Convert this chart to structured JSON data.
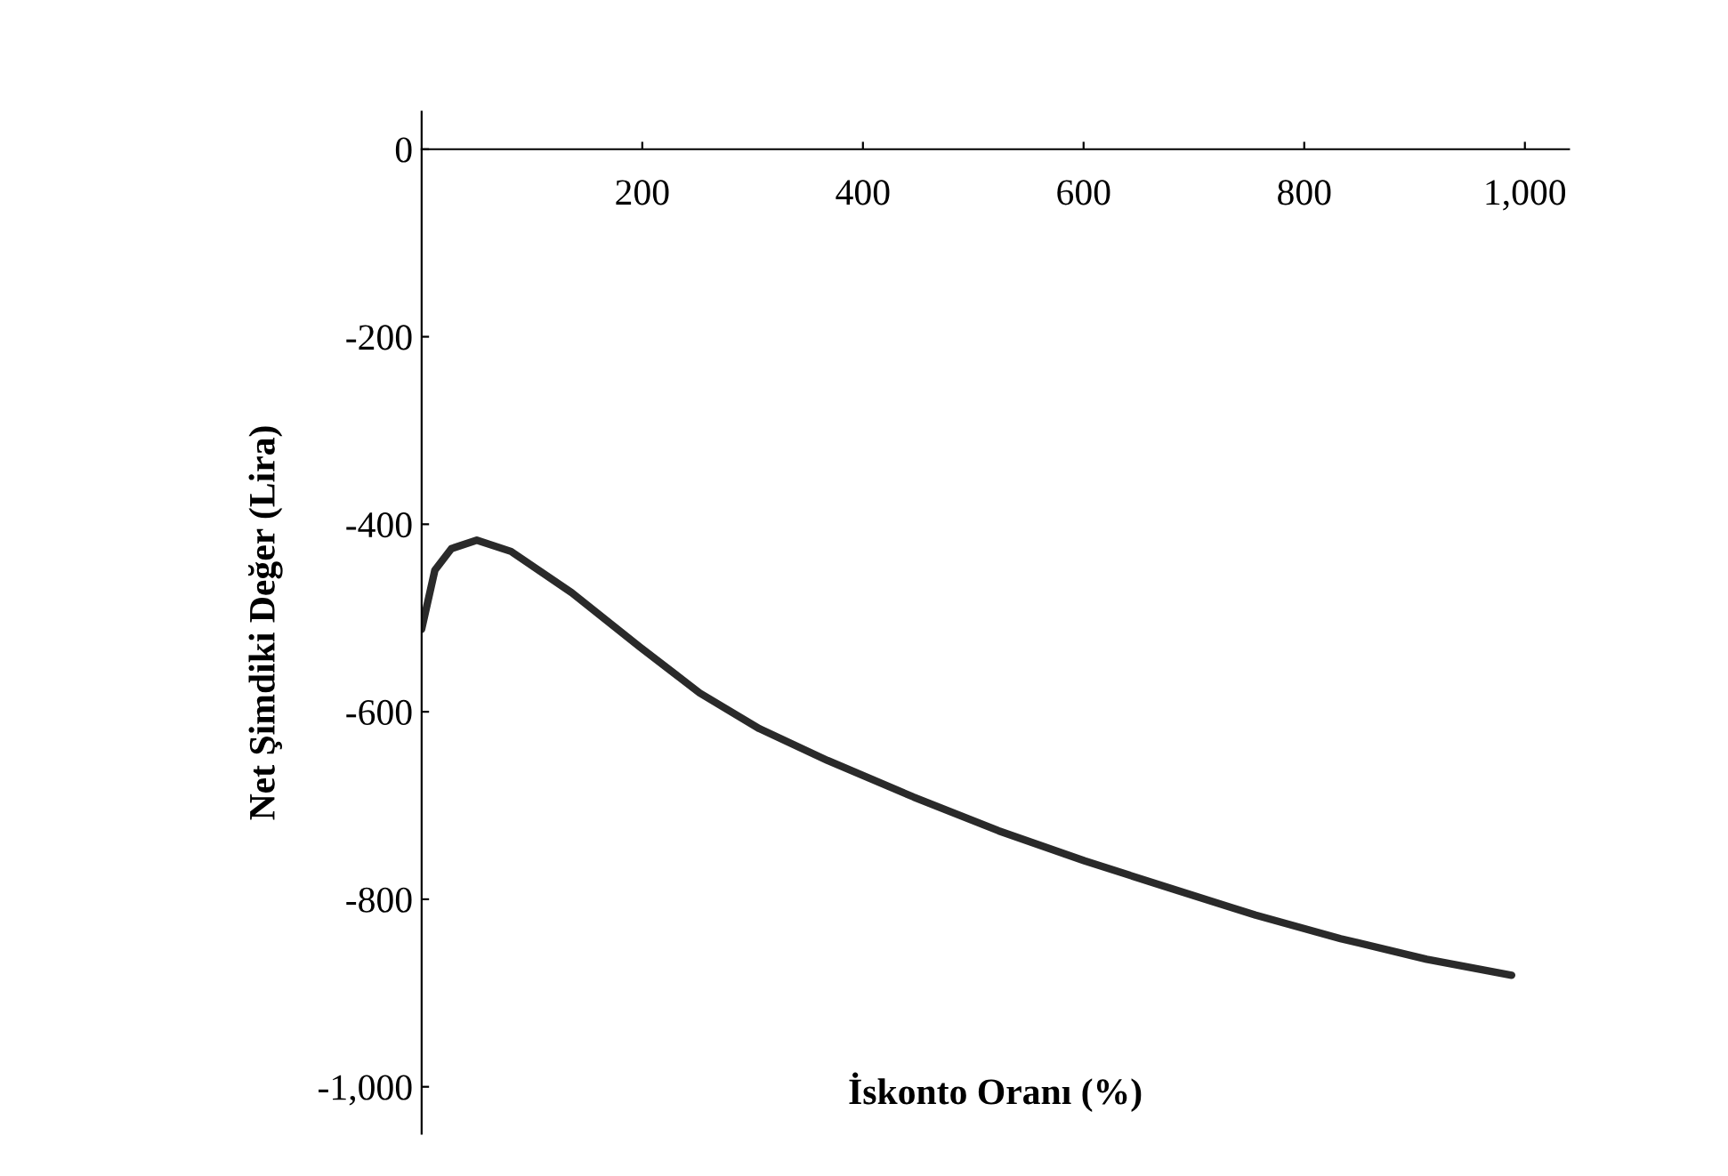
{
  "chart_data": {
    "type": "line",
    "xlabel": "İskonto Oranı (%)",
    "ylabel": "Net Şimdiki Değer (Lira)",
    "series": [
      {
        "color": "#2a2a2a",
        "x": [
          0,
          12,
          27,
          50,
          81,
          136,
          198,
          252,
          306,
          368,
          446,
          523,
          601,
          678,
          756,
          833,
          911,
          988
        ],
        "values": [
          -512,
          -449,
          -426,
          -417,
          -429,
          -473,
          -531,
          -580,
          -618,
          -652,
          -691,
          -727,
          -759,
          -788,
          -817,
          -842,
          -864,
          -881
        ]
      }
    ],
    "xlim": [
      0,
      1040
    ],
    "ylim": [
      -1050,
      40
    ],
    "xticks": [
      200,
      400,
      600,
      800,
      {
        "value": 1000,
        "label": "1,000"
      }
    ],
    "yticks": [
      0,
      -200,
      -400,
      -600,
      -800,
      {
        "value": -1000,
        "label": "-1,000"
      }
    ],
    "grid": false,
    "marker": "none",
    "line_style": "solid"
  }
}
